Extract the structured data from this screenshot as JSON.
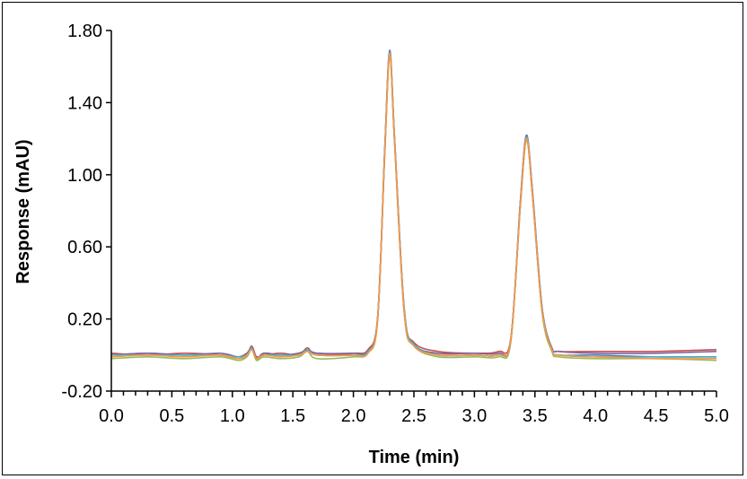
{
  "chart_data": {
    "type": "line",
    "title": "",
    "xlabel": "Time (min)",
    "ylabel": "Response (mAU)",
    "xlim": [
      0.0,
      5.0
    ],
    "ylim": [
      -0.2,
      1.8
    ],
    "x_ticks": [
      "0.0",
      "0.5",
      "1.0",
      "1.5",
      "2.0",
      "2.5",
      "3.0",
      "3.5",
      "4.0",
      "4.5",
      "5.0"
    ],
    "y_ticks": [
      "-0.20",
      "0.20",
      "0.60",
      "1.00",
      "1.40",
      "1.80"
    ],
    "x_tick_values": [
      0,
      0.5,
      1,
      1.5,
      2,
      2.5,
      3,
      3.5,
      4,
      4.5,
      5
    ],
    "y_tick_values": [
      -0.2,
      0.2,
      0.6,
      1.0,
      1.4,
      1.8
    ],
    "x_minor_step": 0.1,
    "grid": false,
    "legend": "none",
    "series": [
      {
        "color": "#4f81bd",
        "x": [
          0,
          0.3,
          0.6,
          0.9,
          1.05,
          1.12,
          1.16,
          1.2,
          1.26,
          1.4,
          1.55,
          1.62,
          1.7,
          2.0,
          2.12,
          2.2,
          2.26,
          2.3,
          2.34,
          2.42,
          2.5,
          2.7,
          3.0,
          3.2,
          3.3,
          3.38,
          3.43,
          3.48,
          3.56,
          3.64,
          3.7,
          4.0,
          4.5,
          5.0
        ],
        "y": [
          0.0,
          0.01,
          0.0,
          0.0,
          -0.01,
          0.01,
          0.04,
          -0.02,
          0.01,
          0.0,
          0.01,
          0.03,
          0.01,
          0.0,
          0.02,
          0.2,
          1.15,
          1.68,
          1.2,
          0.25,
          0.06,
          0.0,
          0.0,
          0.0,
          0.08,
          0.85,
          1.21,
          0.9,
          0.25,
          0.03,
          0.0,
          0.0,
          -0.01,
          -0.01
        ]
      },
      {
        "color": "#c0504d",
        "x": [
          0,
          0.3,
          0.6,
          0.9,
          1.05,
          1.12,
          1.16,
          1.2,
          1.26,
          1.4,
          1.55,
          1.62,
          1.7,
          2.0,
          2.12,
          2.2,
          2.26,
          2.3,
          2.34,
          2.42,
          2.5,
          2.7,
          3.0,
          3.2,
          3.3,
          3.38,
          3.43,
          3.48,
          3.56,
          3.64,
          3.7,
          4.0,
          4.5,
          5.0
        ],
        "y": [
          0.01,
          0.0,
          0.01,
          0.0,
          -0.02,
          0.0,
          0.05,
          -0.01,
          0.0,
          0.01,
          0.0,
          0.04,
          0.0,
          0.01,
          0.03,
          0.21,
          1.13,
          1.67,
          1.18,
          0.24,
          0.07,
          0.02,
          0.01,
          0.02,
          0.09,
          0.83,
          1.2,
          0.88,
          0.24,
          0.04,
          0.02,
          0.02,
          0.02,
          0.03
        ]
      },
      {
        "color": "#9bbb59",
        "x": [
          0,
          0.3,
          0.6,
          0.9,
          1.05,
          1.12,
          1.16,
          1.2,
          1.26,
          1.4,
          1.55,
          1.62,
          1.7,
          2.0,
          2.12,
          2.2,
          2.26,
          2.3,
          2.34,
          2.42,
          2.5,
          2.7,
          3.0,
          3.2,
          3.3,
          3.38,
          3.43,
          3.48,
          3.56,
          3.64,
          3.7,
          4.0,
          4.5,
          5.0
        ],
        "y": [
          -0.02,
          -0.01,
          -0.02,
          -0.01,
          -0.03,
          -0.01,
          0.03,
          -0.03,
          -0.01,
          -0.02,
          -0.01,
          0.02,
          -0.02,
          -0.01,
          0.01,
          0.19,
          1.14,
          1.66,
          1.19,
          0.23,
          0.05,
          -0.01,
          -0.01,
          -0.01,
          0.07,
          0.84,
          1.19,
          0.89,
          0.23,
          0.02,
          -0.01,
          -0.02,
          -0.02,
          -0.03
        ]
      },
      {
        "color": "#8064a2",
        "x": [
          0,
          0.3,
          0.6,
          0.9,
          1.05,
          1.12,
          1.16,
          1.2,
          1.26,
          1.4,
          1.55,
          1.62,
          1.7,
          2.0,
          2.12,
          2.2,
          2.26,
          2.3,
          2.34,
          2.42,
          2.5,
          2.7,
          3.0,
          3.2,
          3.3,
          3.38,
          3.43,
          3.48,
          3.56,
          3.64,
          3.7,
          4.0,
          4.5,
          5.0
        ],
        "y": [
          0.0,
          0.01,
          0.0,
          0.01,
          -0.01,
          0.01,
          0.04,
          -0.02,
          0.01,
          0.0,
          0.01,
          0.03,
          0.01,
          0.01,
          0.02,
          0.2,
          1.16,
          1.69,
          1.21,
          0.26,
          0.06,
          0.01,
          0.01,
          0.01,
          0.08,
          0.86,
          1.22,
          0.91,
          0.26,
          0.04,
          0.02,
          0.01,
          0.01,
          0.02
        ]
      },
      {
        "color": "#4bacc6",
        "x": [
          0,
          0.3,
          0.6,
          0.9,
          1.05,
          1.12,
          1.16,
          1.2,
          1.26,
          1.4,
          1.55,
          1.62,
          1.7,
          2.0,
          2.12,
          2.2,
          2.26,
          2.3,
          2.34,
          2.42,
          2.5,
          2.7,
          3.0,
          3.2,
          3.3,
          3.38,
          3.43,
          3.48,
          3.56,
          3.64,
          3.7,
          4.0,
          4.5,
          5.0
        ],
        "y": [
          0.0,
          0.0,
          0.0,
          0.0,
          -0.01,
          0.0,
          0.04,
          -0.02,
          0.0,
          0.0,
          0.0,
          0.03,
          0.0,
          0.0,
          0.02,
          0.2,
          1.15,
          1.68,
          1.2,
          0.25,
          0.06,
          0.0,
          0.0,
          0.0,
          0.08,
          0.85,
          1.21,
          0.9,
          0.25,
          0.03,
          0.0,
          -0.01,
          -0.01,
          -0.01
        ]
      },
      {
        "color": "#f79646",
        "x": [
          0,
          0.3,
          0.6,
          0.9,
          1.05,
          1.12,
          1.16,
          1.2,
          1.26,
          1.4,
          1.55,
          1.62,
          1.7,
          2.0,
          2.12,
          2.2,
          2.26,
          2.3,
          2.34,
          2.42,
          2.5,
          2.7,
          3.0,
          3.2,
          3.3,
          3.38,
          3.43,
          3.48,
          3.56,
          3.64,
          3.7,
          4.0,
          4.5,
          5.0
        ],
        "y": [
          -0.01,
          0.0,
          -0.01,
          0.0,
          -0.02,
          0.0,
          0.03,
          -0.02,
          0.0,
          -0.01,
          0.0,
          0.02,
          0.0,
          0.0,
          0.01,
          0.2,
          1.14,
          1.67,
          1.19,
          0.24,
          0.05,
          0.0,
          0.0,
          0.0,
          0.08,
          0.84,
          1.2,
          0.89,
          0.24,
          0.03,
          0.0,
          -0.01,
          -0.02,
          -0.02
        ]
      }
    ]
  }
}
